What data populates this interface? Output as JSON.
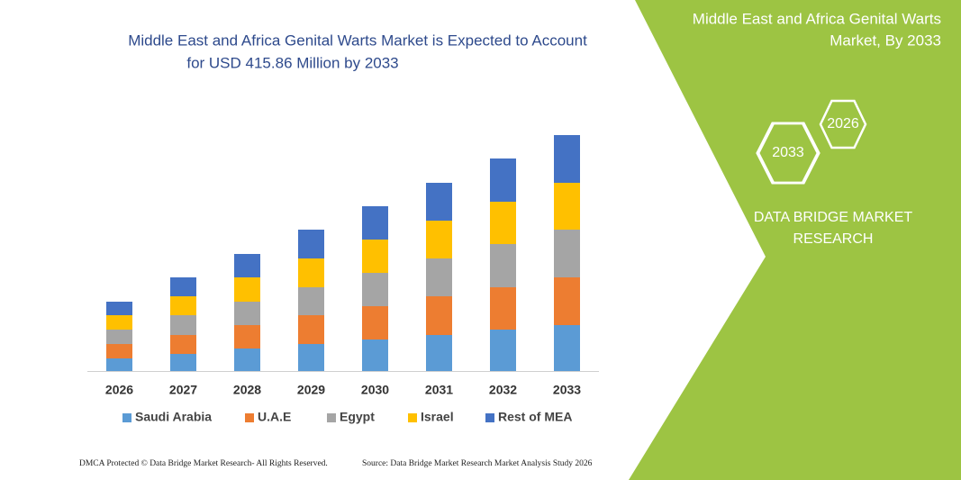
{
  "chart_data": {
    "type": "stacked-bar",
    "title": [
      "Middle East and Africa Genital Warts Market is Expected to Account",
      "for USD 415.86 Million by 2033"
    ],
    "categories": [
      "2026",
      "2027",
      "2028",
      "2029",
      "2030",
      "2031",
      "2032",
      "2033"
    ],
    "series": [
      {
        "name": "Saudi Arabia",
        "color": "#5b9bd5",
        "values": [
          14,
          19,
          25,
          30,
          35,
          40,
          46,
          51
        ]
      },
      {
        "name": "U.A.E",
        "color": "#ed7d31",
        "values": [
          16,
          21,
          26,
          32,
          37,
          43,
          47,
          53
        ]
      },
      {
        "name": "Egypt",
        "color": "#a5a5a5",
        "values": [
          16,
          22,
          26,
          31,
          37,
          42,
          48,
          53
        ]
      },
      {
        "name": "Israel",
        "color": "#ffc000",
        "values": [
          16,
          21,
          27,
          32,
          37,
          42,
          47,
          52
        ]
      },
      {
        "name": "Rest of MEA",
        "color": "#4472c4",
        "values": [
          15,
          21,
          26,
          32,
          37,
          42,
          48,
          53
        ]
      }
    ],
    "ylim": [
      0,
      300
    ],
    "legend": "bottom"
  },
  "panel": {
    "heading": [
      "Middle East and Africa Genital Warts",
      "Market, By 2033"
    ],
    "hexagons": [
      "2033",
      "2026"
    ],
    "brand": [
      "DATA BRIDGE MARKET",
      "RESEARCH"
    ]
  },
  "footer": {
    "left": "DMCA Protected © Data Bridge Market Research-  All Rights Reserved.",
    "right": "Source: Data Bridge Market Research  Market Analysis Study 2026"
  }
}
